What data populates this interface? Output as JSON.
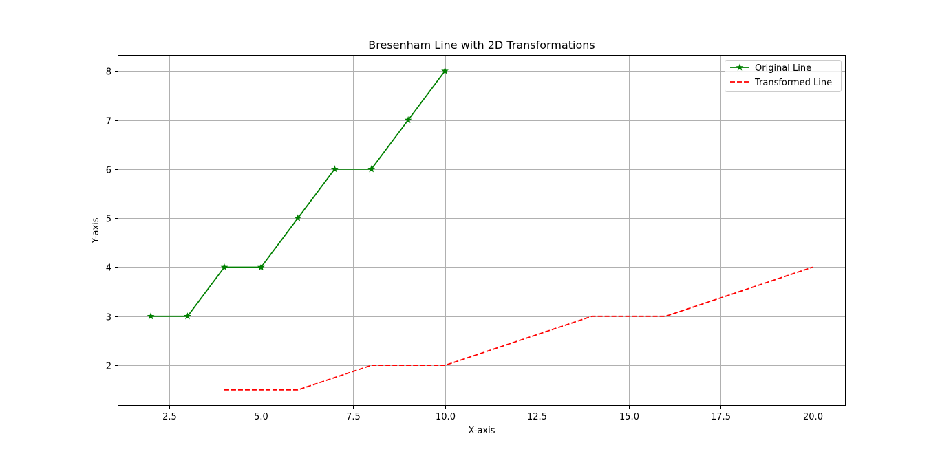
{
  "chart_data": {
    "type": "line",
    "title": "Bresenham Line with 2D Transformations",
    "xlabel": "X-axis",
    "ylabel": "Y-axis",
    "xlim": [
      1.1,
      20.9
    ],
    "ylim": [
      1.175,
      8.325
    ],
    "xticks": [
      2.5,
      5.0,
      7.5,
      10.0,
      12.5,
      15.0,
      17.5,
      20.0
    ],
    "xtick_labels": [
      "2.5",
      "5.0",
      "7.5",
      "10.0",
      "12.5",
      "15.0",
      "17.5",
      "20.0"
    ],
    "yticks": [
      2,
      3,
      4,
      5,
      6,
      7,
      8
    ],
    "ytick_labels": [
      "2",
      "3",
      "4",
      "5",
      "6",
      "7",
      "8"
    ],
    "grid": true,
    "legend_position": "top-right",
    "series": [
      {
        "name": "Original Line",
        "color": "#008000",
        "style": "solid",
        "marker": "star",
        "x": [
          2,
          3,
          4,
          5,
          6,
          7,
          8,
          9,
          10
        ],
        "y": [
          3,
          3,
          4,
          4,
          5,
          6,
          6,
          7,
          8
        ]
      },
      {
        "name": "Transformed Line",
        "color": "#ff0000",
        "style": "dashed",
        "marker": "none",
        "x": [
          4,
          6,
          8,
          10,
          12,
          14,
          16,
          18,
          20
        ],
        "y": [
          1.5,
          1.5,
          2,
          2,
          2.5,
          3,
          3,
          3.5,
          4
        ]
      }
    ]
  }
}
